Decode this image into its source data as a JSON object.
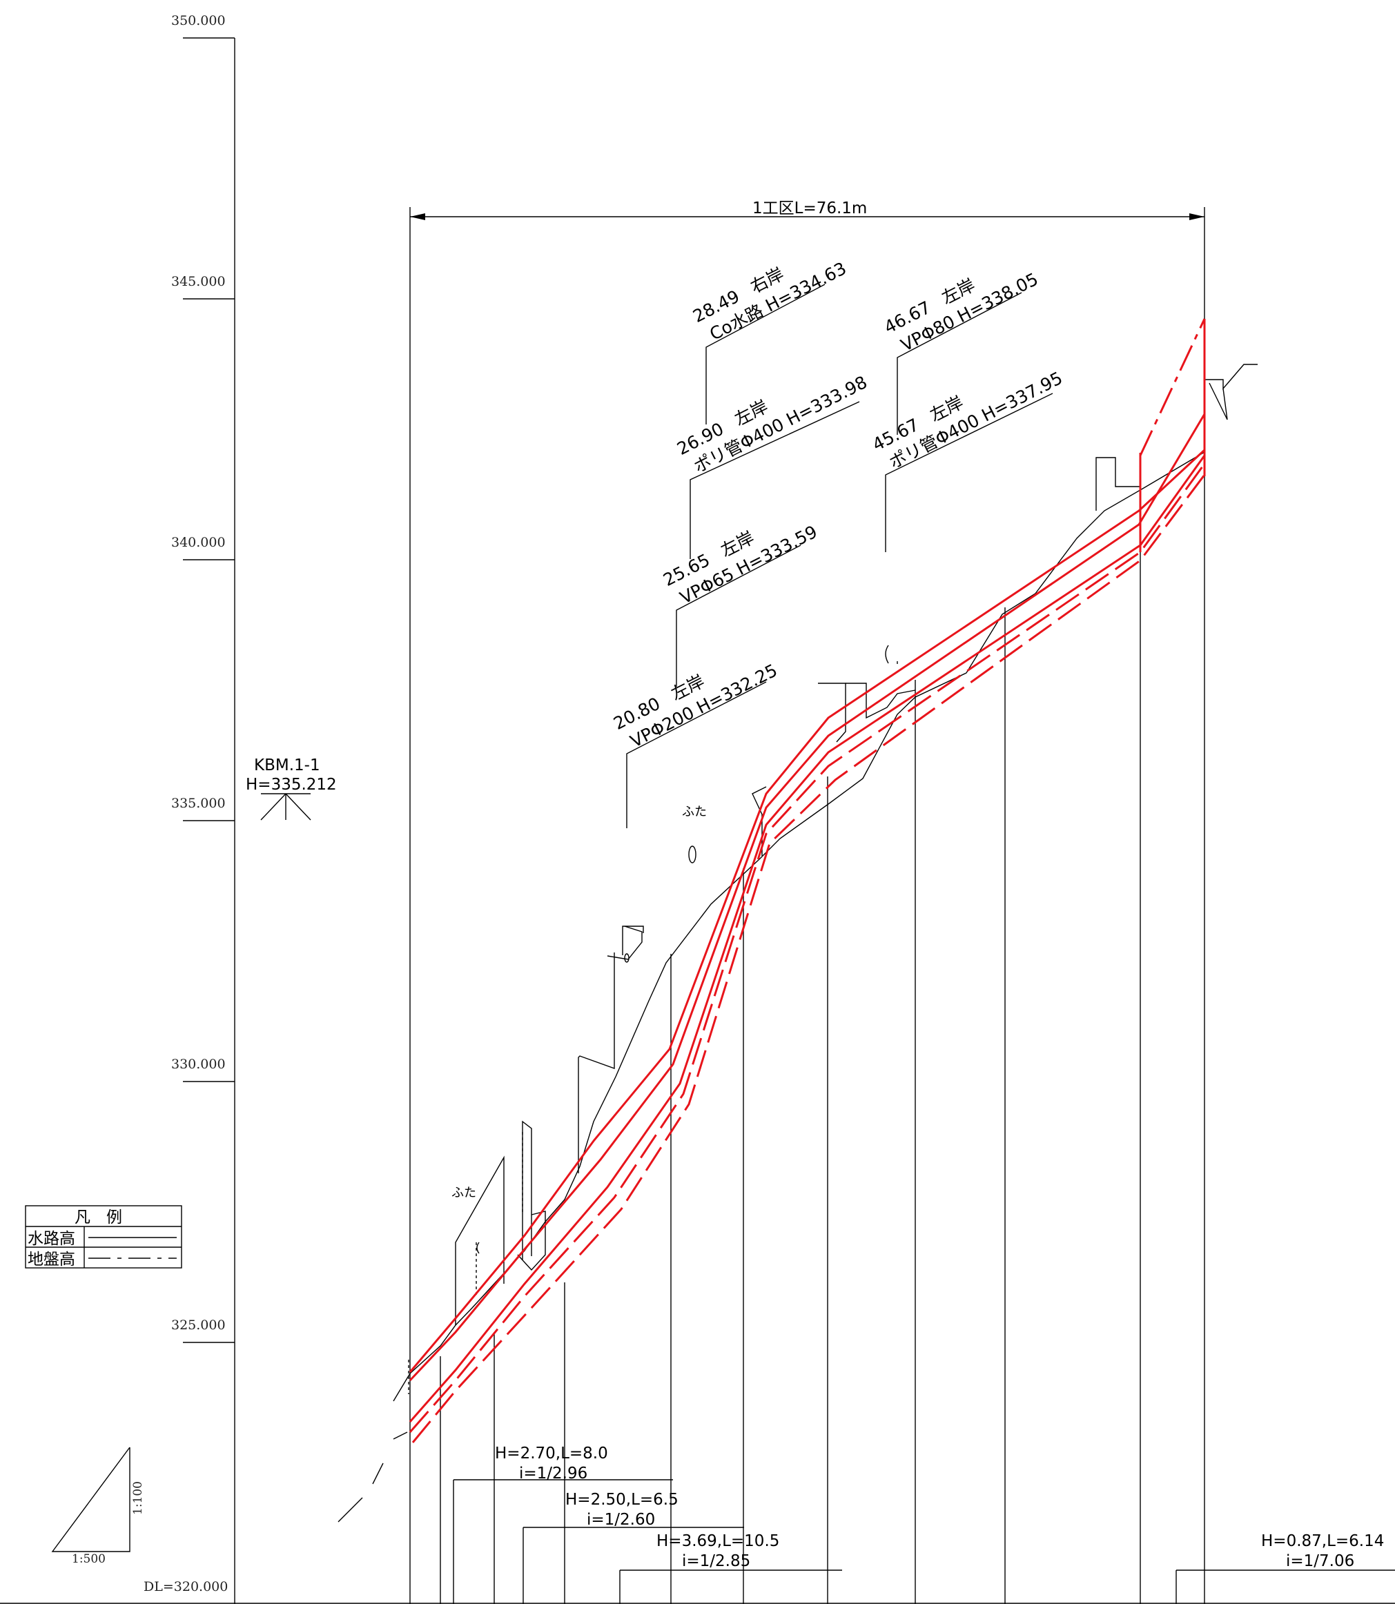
{
  "elevation_axis": {
    "ticks": [
      "350.000",
      "345.000",
      "340.000",
      "335.000",
      "330.000",
      "325.000"
    ],
    "datum_label": "DL=320.000"
  },
  "section_label": "1工区L=76.1m",
  "benchmark": {
    "name": "KBM.1-1",
    "height": "H=335.212"
  },
  "legend": {
    "title": "凡　例",
    "rows": [
      {
        "label": "水路高",
        "style": "solid"
      },
      {
        "label": "地盤高",
        "style": "dashed"
      }
    ]
  },
  "scale": {
    "vertical": "1:100",
    "horizontal": "1:500"
  },
  "annotations": [
    {
      "chainage": "28.49",
      "side": "右岸",
      "desc": "Co水路 H=334.63"
    },
    {
      "chainage": "26.90",
      "side": "左岸",
      "desc": "ポリ管Φ400 H=333.98"
    },
    {
      "chainage": "25.65",
      "side": "左岸",
      "desc": "VPΦ65 H=333.59"
    },
    {
      "chainage": "20.80",
      "side": "左岸",
      "desc": "VPΦ200 H=332.25"
    },
    {
      "chainage": "46.67",
      "side": "左岸",
      "desc": "VPΦ80 H=338.05"
    },
    {
      "chainage": "45.67",
      "side": "左岸",
      "desc": "ポリ管Φ400 H=337.95"
    }
  ],
  "cover_labels": [
    "ふた",
    "ふた"
  ],
  "slopes": [
    {
      "hl": "H=2.70,L=8.0",
      "i": "i=1/2.96"
    },
    {
      "hl": "H=2.50,L=6.5",
      "i": "i=1/2.60"
    },
    {
      "hl": "H=3.69,L=10.5",
      "i": "i=1/2.85"
    },
    {
      "hl": "H=0.87,L=6.14",
      "i": "i=1/7.06"
    }
  ],
  "colors": {
    "design_line": "#e8141b",
    "drawing_line": "#000000"
  }
}
